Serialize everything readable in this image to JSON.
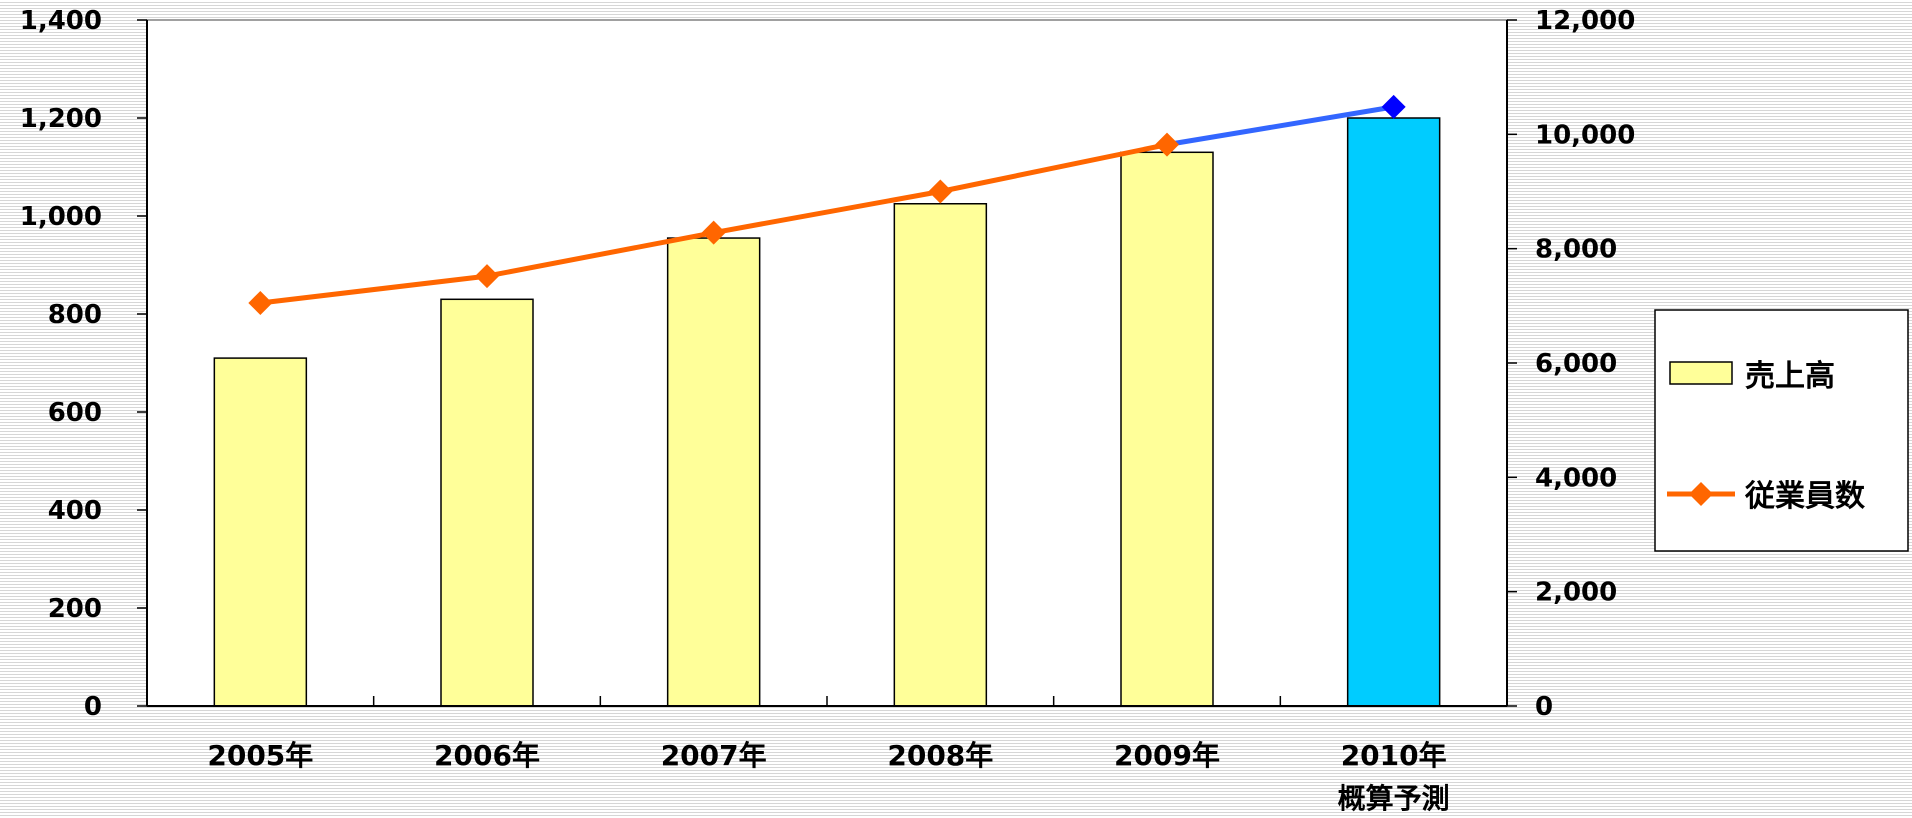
{
  "chart_data": {
    "type": "bar+line",
    "categories": [
      "2005年",
      "2006年",
      "2007年",
      "2008年",
      "2009年",
      "2010年"
    ],
    "category_sublabels": [
      "",
      "",
      "",
      "",
      "",
      "概算予測"
    ],
    "series": [
      {
        "name": "売上高",
        "type": "bar",
        "axis": "left",
        "values": [
          710,
          830,
          955,
          1025,
          1130,
          1200
        ],
        "color": "#ffff99",
        "highlight_color": "#00ccff",
        "highlight_index": 5
      },
      {
        "name": "従業員数",
        "type": "line",
        "axis": "right",
        "values": [
          7050,
          7520,
          8280,
          9000,
          9820,
          10480
        ],
        "color": "#ff6600",
        "forecast_color": "#3366ff",
        "forecast_marker_color": "#0000ff",
        "forecast_from_index": 4
      }
    ],
    "y_left": {
      "ylim": [
        0,
        1400
      ],
      "ticks": [
        "0",
        "200",
        "400",
        "600",
        "800",
        "1,000",
        "1,200",
        "1,400"
      ]
    },
    "y_right": {
      "ylim": [
        0,
        12000
      ],
      "ticks": [
        "0",
        "2,000",
        "4,000",
        "6,000",
        "8,000",
        "10,000",
        "12,000"
      ]
    },
    "grid": false,
    "legend": {
      "position": "right",
      "items": [
        "売上高",
        "従業員数"
      ]
    }
  }
}
